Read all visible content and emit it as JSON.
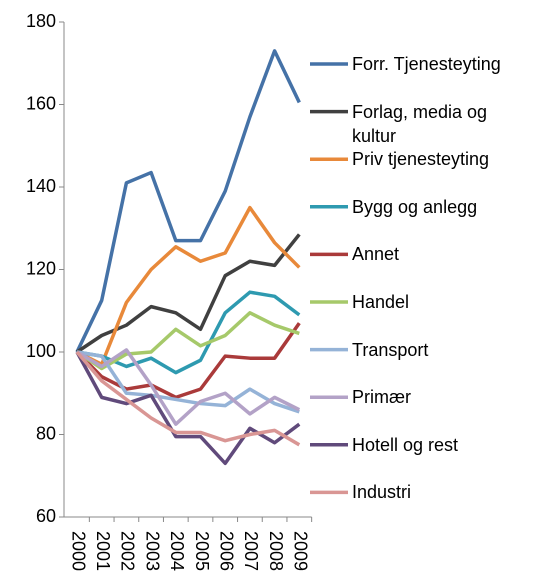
{
  "chart_data": {
    "type": "line",
    "categories": [
      "2000",
      "2001",
      "2002",
      "2003",
      "2004",
      "2005",
      "2006",
      "2007",
      "2008",
      "2009"
    ],
    "series": [
      {
        "name": "Forr. Tjenesteyting",
        "color": "#4572a7",
        "values": [
          100,
          112.5,
          141,
          143.5,
          127,
          127,
          139,
          157,
          173,
          160.5
        ]
      },
      {
        "name": "Forlag, media og kultur",
        "color": "#404040",
        "values": [
          100,
          104,
          106.5,
          111,
          109.5,
          105.5,
          118.5,
          122,
          121,
          128.5
        ]
      },
      {
        "name": "Priv tjenesteyting",
        "color": "#e8893a",
        "values": [
          100,
          97,
          112,
          120,
          125.5,
          122,
          124,
          135,
          126.5,
          120.5
        ]
      },
      {
        "name": "Bygg og anlegg",
        "color": "#2e9ab0",
        "values": [
          100,
          99,
          96.5,
          98.5,
          95,
          98,
          109.5,
          114.5,
          113.5,
          109
        ]
      },
      {
        "name": "Annet",
        "color": "#aa3a3a",
        "values": [
          100,
          94,
          91,
          92,
          89,
          91,
          99,
          98.5,
          98.5,
          107
        ]
      },
      {
        "name": "Handel",
        "color": "#a6c96a",
        "values": [
          100,
          96,
          99.5,
          100,
          105.5,
          101.5,
          104,
          109.5,
          106.5,
          104.5
        ]
      },
      {
        "name": "Transport",
        "color": "#95b3d7",
        "values": [
          100,
          99,
          90,
          89.5,
          88.5,
          87.5,
          87,
          91,
          87.5,
          85.5
        ]
      },
      {
        "name": "Primær",
        "color": "#b3a2c7",
        "values": [
          100,
          96.5,
          100.5,
          92,
          82.5,
          88,
          90,
          85,
          89,
          86
        ]
      },
      {
        "name": "Hotell og rest",
        "color": "#604a7b",
        "values": [
          100,
          89,
          87.5,
          89.5,
          79.5,
          79.5,
          73,
          81.5,
          78,
          82.5
        ]
      },
      {
        "name": "Industri",
        "color": "#d99694",
        "values": [
          100,
          93,
          88.5,
          84,
          80.5,
          80.5,
          78.5,
          80,
          81,
          77.5
        ]
      }
    ],
    "ylim": [
      60,
      180
    ],
    "yticks": [
      60,
      80,
      100,
      120,
      140,
      160,
      180
    ],
    "grid": false
  }
}
